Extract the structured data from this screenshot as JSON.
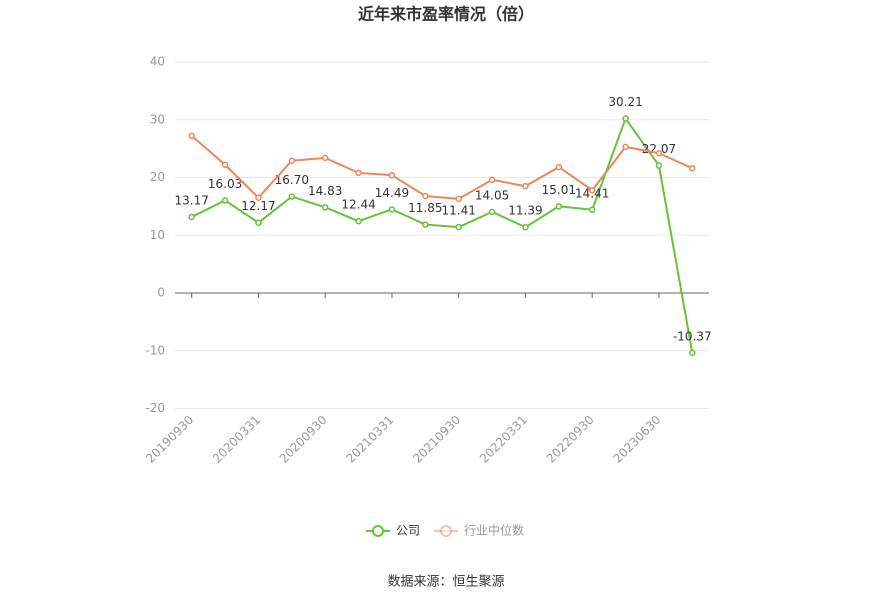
{
  "chart_data": {
    "type": "line",
    "title": "近年来市盈率情况（倍）",
    "categories": [
      "20190930",
      null,
      "20200331",
      null,
      "20200930",
      null,
      "20210331",
      null,
      "20210930",
      null,
      "20220331",
      null,
      "20220930",
      null,
      "20230630",
      null
    ],
    "series": [
      {
        "name": "公司",
        "color": "#66c23a",
        "values": [
          13.17,
          16.03,
          12.17,
          16.7,
          14.83,
          12.44,
          14.49,
          11.85,
          11.41,
          14.05,
          11.39,
          15.01,
          14.41,
          30.21,
          22.07,
          -10.37
        ],
        "value_labels": [
          "13.17",
          "16.03",
          "12.17",
          "16.70",
          "14.83",
          "12.44",
          "14.49",
          "11.85",
          "11.41",
          "14.05",
          "11.39",
          "15.01",
          "14.41",
          "30.21",
          "22.07",
          "-10.37"
        ]
      },
      {
        "name": "行业中位数",
        "color": "#f0855a",
        "values": [
          27.2,
          22.2,
          16.5,
          22.9,
          23.4,
          20.8,
          20.4,
          16.8,
          16.3,
          19.6,
          18.5,
          21.8,
          17.8,
          25.3,
          24.2,
          21.6
        ]
      }
    ],
    "ylim": [
      -20,
      40
    ],
    "yticks": [
      -20,
      -10,
      0,
      10,
      20,
      30,
      40
    ],
    "grid": true,
    "legend": "bottom",
    "source": "数据来源：恒生聚源"
  }
}
